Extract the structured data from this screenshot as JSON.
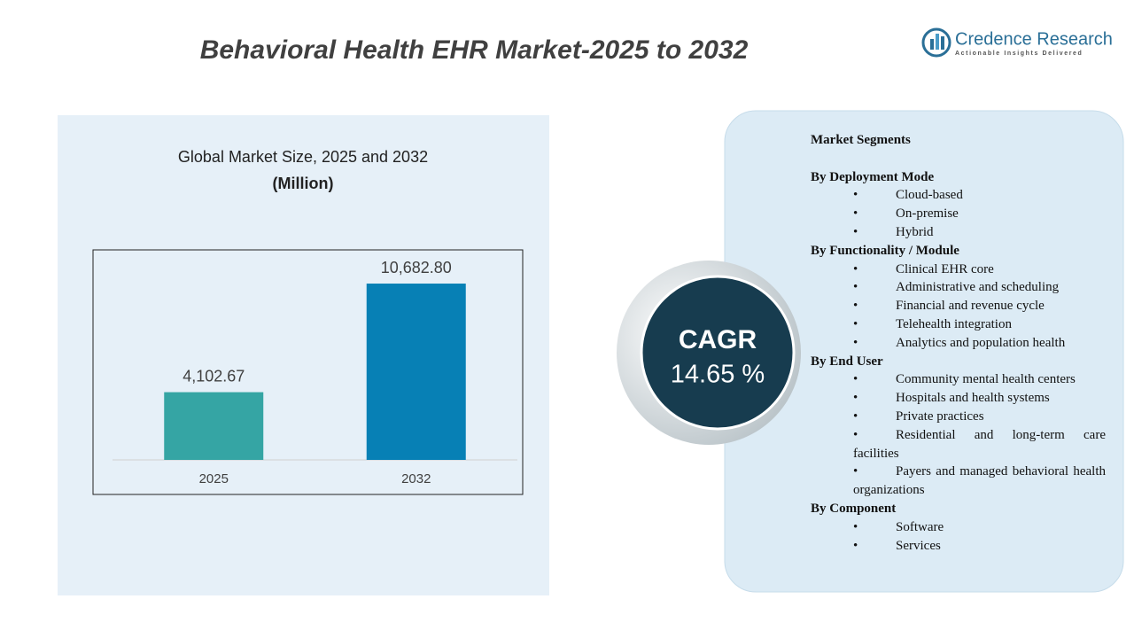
{
  "header": {
    "title": "Behavioral Health EHR Market-2025 to 2032"
  },
  "logo": {
    "name": "Credence Research",
    "tagline": "Actionable Insights Delivered"
  },
  "chart_data": {
    "type": "bar",
    "title": "Global Market Size,  2025 and 2032",
    "subtitle": "(Million)",
    "categories": [
      "2025",
      "2032"
    ],
    "values": [
      4102.67,
      10682.8
    ],
    "value_labels": [
      "4,102.67",
      "10,682.80"
    ],
    "colors": [
      "#35a5a4",
      "#0780b5"
    ],
    "ylim": [
      0,
      12000
    ]
  },
  "cagr": {
    "label": "CAGR",
    "value": "14.65 %"
  },
  "segments": {
    "title": "Market Segments",
    "groups": [
      {
        "heading": "By Deployment Mode",
        "items": [
          "Cloud-based",
          "On-premise",
          "Hybrid"
        ]
      },
      {
        "heading": "By Functionality / Module",
        "items": [
          "Clinical EHR core",
          "Administrative and scheduling",
          "Financial and revenue cycle",
          "Telehealth integration",
          "Analytics and population health"
        ]
      },
      {
        "heading": "By End User",
        "items": [
          "Community mental health centers",
          "Hospitals and health systems",
          "Private practices",
          "Residential and long-term care facilities",
          "Payers and managed behavioral health organizations"
        ]
      },
      {
        "heading": "By Component",
        "items": [
          "Software",
          "Services"
        ]
      }
    ]
  }
}
